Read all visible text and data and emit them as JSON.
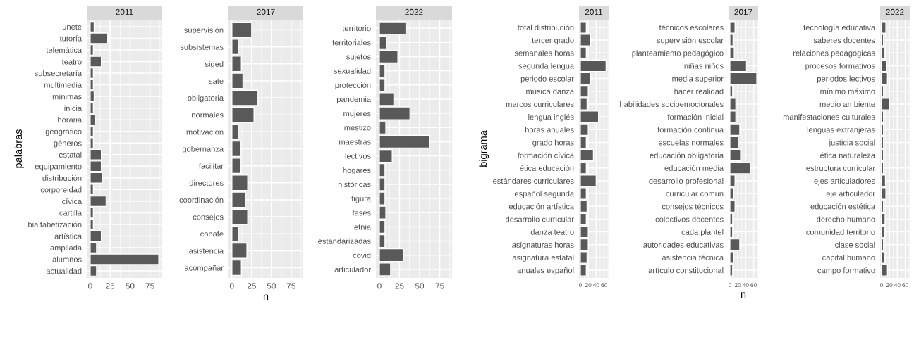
{
  "chart_data": [
    {
      "type": "bar",
      "orientation": "horizontal",
      "title": "2011",
      "ylabel": "palabras",
      "color": "#595959",
      "grid": true,
      "xlim": [
        -4.3,
        90.3
      ],
      "xticks": [
        0,
        25,
        50,
        75
      ],
      "categories": [
        "unete",
        "tutoría",
        "telemática",
        "teatro",
        "subsecretaría",
        "multimedia",
        "mínimas",
        "inicia",
        "horaria",
        "geográfico",
        "géneros",
        "estatal",
        "equipamiento",
        "distribución",
        "corporeidad",
        "cívica",
        "cartilla",
        "bialfabetización",
        "artística",
        "ampliada",
        "alumnos",
        "actualidad"
      ],
      "values": [
        5,
        22,
        4,
        14,
        4,
        4,
        5,
        4,
        6,
        4,
        4,
        14,
        14,
        15,
        4,
        20,
        4,
        4,
        14,
        8,
        86,
        8
      ]
    },
    {
      "type": "bar",
      "orientation": "horizontal",
      "title": "2017",
      "xlabel": "n",
      "color": "#595959",
      "grid": true,
      "xlim": [
        -4.3,
        90.3
      ],
      "xticks": [
        0,
        25,
        50,
        75
      ],
      "categories": [
        "supervisión",
        "subsistemas",
        "siged",
        "sate",
        "obligatoria",
        "normales",
        "motivación",
        "gobernanza",
        "facilitar",
        "directores",
        "coordinación",
        "consejos",
        "conafe",
        "asistencia",
        "acompañar"
      ],
      "values": [
        25,
        8,
        12,
        14,
        33,
        28,
        8,
        11,
        11,
        20,
        17,
        20,
        8,
        19,
        12
      ]
    },
    {
      "type": "bar",
      "orientation": "horizontal",
      "title": "2022",
      "color": "#595959",
      "grid": true,
      "xlim": [
        -4.3,
        90.3
      ],
      "xticks": [
        0,
        25,
        50,
        75
      ],
      "categories": [
        "territorio",
        "territoriales",
        "sujetos",
        "sexualidad",
        "protección",
        "pandemia",
        "mujeres",
        "mestizo",
        "maestras",
        "lectivos",
        "hogares",
        "históricas",
        "figura",
        "fases",
        "etnia",
        "estandarizadas",
        "covid",
        "articulador"
      ],
      "values": [
        33,
        9,
        23,
        7,
        7,
        18,
        38,
        8,
        62,
        16,
        7,
        7,
        7,
        8,
        7,
        7,
        30,
        14
      ]
    },
    {
      "type": "bar",
      "orientation": "horizontal",
      "title": "2011",
      "ylabel": "bigrama",
      "color": "#595959",
      "grid": true,
      "xlim": [
        -3.4,
        71.4
      ],
      "xticks": [
        0,
        20,
        40,
        60
      ],
      "categories": [
        "total distribución",
        "tercer grado",
        "semanales horas",
        "segunda lengua",
        "periodo escolar",
        "música danza",
        "marcos curriculares",
        "lengua inglés",
        "horas anuales",
        "grado horas",
        "formación cívica",
        "ética educación",
        "estándares curriculares",
        "español segunda",
        "educación artística",
        "desarrollo curricular",
        "danza teatro",
        "asignaturas horas",
        "asignatura estatal",
        "anuales español"
      ],
      "values": [
        15,
        26,
        15,
        65,
        26,
        20,
        17,
        46,
        20,
        15,
        33,
        15,
        40,
        15,
        17,
        15,
        20,
        20,
        17,
        15
      ]
    },
    {
      "type": "bar",
      "orientation": "horizontal",
      "title": "2017",
      "xlabel": "n",
      "color": "#595959",
      "grid": true,
      "xlim": [
        -3.4,
        71.4
      ],
      "xticks": [
        0,
        20,
        40,
        60
      ],
      "categories": [
        "técnicos escolares",
        "supervisión escolar",
        "planteamiento pedagógico",
        "niñas niños",
        "media superior",
        "hacer realidad",
        "habilidades socioemocionales",
        "formación inicial",
        "formación continua",
        "escuelas normales",
        "educación obligatoria",
        "educación media",
        "desarrollo profesional",
        "curricular común",
        "consejos técnicos",
        "colectivos docentes",
        "cada plantel",
        "autoridades educativas",
        "asistencia técnica",
        "artículo constitucional"
      ],
      "values": [
        13,
        8,
        11,
        42,
        68,
        7,
        15,
        15,
        25,
        21,
        27,
        52,
        13,
        9,
        13,
        7,
        7,
        25,
        9,
        7
      ]
    },
    {
      "type": "bar",
      "orientation": "horizontal",
      "title": "2022",
      "color": "#595959",
      "grid": true,
      "xlim": [
        -3.4,
        71.4
      ],
      "xticks": [
        0,
        20,
        40,
        60
      ],
      "categories": [
        "tecnología educativa",
        "saberes docentes",
        "relaciones pedagógicas",
        "procesos formativos",
        "periodos lectivos",
        "mínimo máximo",
        "medio ambiente",
        "manifestaciones culturales",
        "lenguas extranjeras",
        "justicia social",
        "ética naturaleza",
        "estructura curricular",
        "ejes articuladores",
        "eje articulador",
        "educación estética",
        "derecho humano",
        "comunidad territorio",
        "clase social",
        "capital humano",
        "campo formativo"
      ],
      "values": [
        11,
        5,
        7,
        13,
        15,
        5,
        20,
        5,
        5,
        5,
        5,
        5,
        10,
        11,
        5,
        9,
        8,
        5,
        7,
        15
      ]
    }
  ]
}
